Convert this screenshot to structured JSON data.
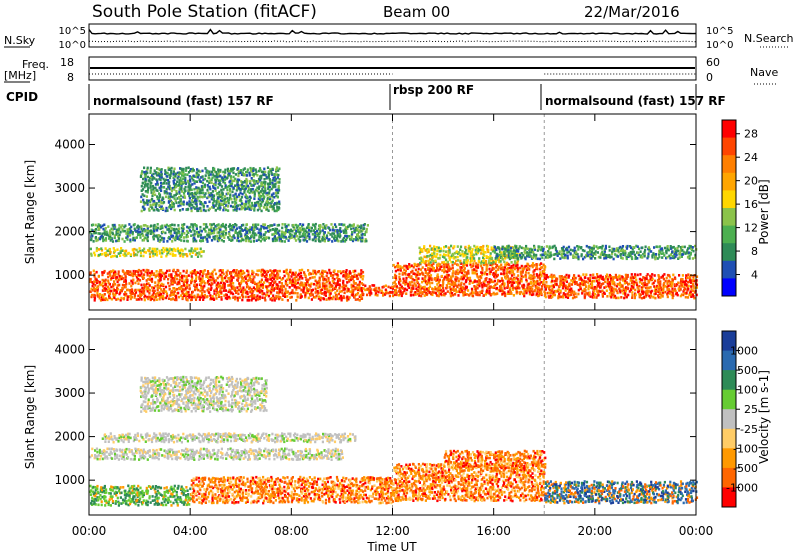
{
  "header": {
    "title": "South Pole Station (fitACF)",
    "beam": "Beam 00",
    "date": "22/Mar/2016"
  },
  "top_panels": {
    "nsky_label": "N.Sky",
    "nsky_ticks": [
      "10^5",
      "10^0"
    ],
    "nsearch_label": "N.Search",
    "nsearch_ticks": [
      "10^5",
      "10^0"
    ],
    "freq_label": "Freq.",
    "freq_unit": "[MHz]",
    "freq_ticks": [
      "18",
      "8"
    ],
    "nave_label": "Nave",
    "nave_ticks": [
      "60",
      "0"
    ],
    "cpid_label": "CPID",
    "cpid_segments": [
      {
        "label": "normalsound (fast) 157 RF",
        "start_hour": 0,
        "end_hour": 12
      },
      {
        "label": "rbsp 200 RF",
        "start_hour": 12,
        "end_hour": 18
      },
      {
        "label": "normalsound (fast) 157 RF",
        "start_hour": 18,
        "end_hour": 24
      }
    ]
  },
  "chart_data": [
    {
      "type": "heatmap",
      "name": "power-panel",
      "ylabel": "Slant Range [km]",
      "y_ticks": [
        1000,
        2000,
        3000,
        4000
      ],
      "ylim": [
        200,
        4700
      ],
      "x_ticks": [
        "00:00",
        "04:00",
        "08:00",
        "12:00",
        "16:00",
        "20:00",
        "00:00"
      ],
      "xlim_hours": [
        0,
        24
      ],
      "dashed_lines_hours": [
        12,
        18
      ],
      "colorbar": {
        "label": "Power [dB]",
        "ticks": [
          "4",
          "8",
          "12",
          "16",
          "20",
          "24",
          "28"
        ],
        "range": [
          0,
          30
        ],
        "colors": [
          "#0000ff",
          "#1f4fb4",
          "#2e8b57",
          "#4caf50",
          "#8bc34a",
          "#ffd700",
          "#ffa500",
          "#ff7f00",
          "#ff4500",
          "#ff0000"
        ]
      },
      "echo_regions": [
        {
          "t0": 0.0,
          "t1": 10.8,
          "r0": 450,
          "r1": 1150,
          "level": "high"
        },
        {
          "t0": 10.8,
          "t1": 12.0,
          "r0": 550,
          "r1": 800,
          "level": "high"
        },
        {
          "t0": 12.0,
          "t1": 18.0,
          "r0": 550,
          "r1": 1300,
          "level": "high"
        },
        {
          "t0": 18.0,
          "t1": 24.0,
          "r0": 500,
          "r1": 1050,
          "level": "high"
        },
        {
          "t0": 0.0,
          "t1": 4.5,
          "r0": 1450,
          "r1": 1650,
          "level": "mid"
        },
        {
          "t0": 0.0,
          "t1": 11.0,
          "r0": 1800,
          "r1": 2200,
          "level": "low"
        },
        {
          "t0": 2.0,
          "t1": 7.5,
          "r0": 2500,
          "r1": 3500,
          "level": "low"
        },
        {
          "t0": 13.0,
          "t1": 17.0,
          "r0": 1300,
          "r1": 1700,
          "level": "mid"
        },
        {
          "t0": 16.0,
          "t1": 24.0,
          "r0": 1400,
          "r1": 1700,
          "level": "low"
        }
      ]
    },
    {
      "type": "heatmap",
      "name": "velocity-panel",
      "ylabel": "Slant Range [km]",
      "xlabel": "Time UT",
      "y_ticks": [
        1000,
        2000,
        3000,
        4000
      ],
      "ylim": [
        200,
        4700
      ],
      "x_ticks": [
        "00:00",
        "04:00",
        "08:00",
        "12:00",
        "16:00",
        "20:00",
        "00:00"
      ],
      "xlim_hours": [
        0,
        24
      ],
      "dashed_lines_hours": [
        12,
        18
      ],
      "colorbar": {
        "label": "Velocity [m s-1]",
        "ticks": [
          "1000",
          "500",
          "100",
          "25",
          "-25",
          "-100",
          "-500",
          "-1000"
        ],
        "range": [
          -1000,
          1000
        ],
        "colors": [
          "#1a3d99",
          "#2a6ab0",
          "#2e8b57",
          "#66cc33",
          "#c0c0c0",
          "#ffcc66",
          "#ff9900",
          "#ff6600",
          "#ff0000"
        ]
      },
      "echo_regions": [
        {
          "t0": 0.0,
          "t1": 4.0,
          "r0": 450,
          "r1": 900,
          "level": "green"
        },
        {
          "t0": 4.0,
          "t1": 12.0,
          "r0": 500,
          "r1": 1100,
          "level": "orange"
        },
        {
          "t0": 0.0,
          "t1": 10.0,
          "r0": 1500,
          "r1": 1750,
          "level": "grey"
        },
        {
          "t0": 0.5,
          "t1": 10.5,
          "r0": 1900,
          "r1": 2100,
          "level": "grey"
        },
        {
          "t0": 2.0,
          "t1": 7.0,
          "r0": 2600,
          "r1": 3400,
          "level": "grey"
        },
        {
          "t0": 12.0,
          "t1": 18.0,
          "r0": 550,
          "r1": 1400,
          "level": "orange"
        },
        {
          "t0": 18.0,
          "t1": 24.0,
          "r0": 500,
          "r1": 1000,
          "level": "blue"
        },
        {
          "t0": 14.0,
          "t1": 18.0,
          "r0": 1300,
          "r1": 1700,
          "level": "orange"
        }
      ]
    }
  ]
}
